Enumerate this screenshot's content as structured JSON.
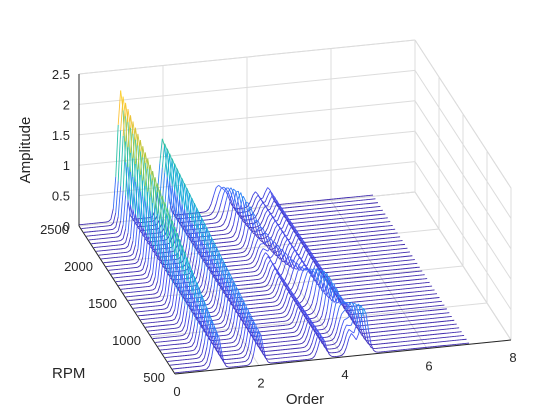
{
  "chart_data": {
    "type": "waterfall",
    "title": "",
    "xlabel": "Order",
    "ylabel": "RPM",
    "zlabel": "Amplitude",
    "xlim": [
      0,
      8
    ],
    "ylim": [
      500,
      2500
    ],
    "zlim": [
      0,
      2.5
    ],
    "x_tick_labels": [
      "0",
      "2",
      "4",
      "6",
      "8"
    ],
    "y_tick_labels": [
      "500",
      "1000",
      "1500",
      "2000",
      "2500"
    ],
    "z_tick_labels": [
      "0",
      "0.5",
      "1",
      "1.5",
      "2",
      "2.5"
    ],
    "x_ticks": [
      0,
      2,
      4,
      6,
      8
    ],
    "y_ticks": [
      500,
      1000,
      1500,
      2000,
      2500
    ],
    "z_ticks": [
      0,
      0.5,
      1,
      1.5,
      2,
      2.5
    ],
    "rpm_min": 500,
    "rpm_max": 2500,
    "colormap": "parula",
    "grid": true,
    "peaks": [
      {
        "order": 1,
        "amplitude_at_rpm_min": 0.6,
        "amplitude_at_rpm_max": 2.15
      },
      {
        "order": 2,
        "amplitude_at_rpm_min": 0.55,
        "amplitude_at_rpm_max": 1.3
      },
      {
        "order": 3.5,
        "amplitude_at_rpm_min": 0.35,
        "amplitude_at_rpm_max": 0.25
      },
      {
        "order": 4.2,
        "amplitude_at_rpm_min": 0.35,
        "amplitude_at_rpm_max": 0.25
      },
      {
        "order": 4.5,
        "amplitude_at_rpm_min": 0.35,
        "amplitude_at_rpm_max": 0.3
      }
    ],
    "order_of_moving_peak": {
      "order_at_rpm_min": 4.5,
      "order_at_rpm_max": 3.3,
      "amplitude": 0.4
    }
  }
}
